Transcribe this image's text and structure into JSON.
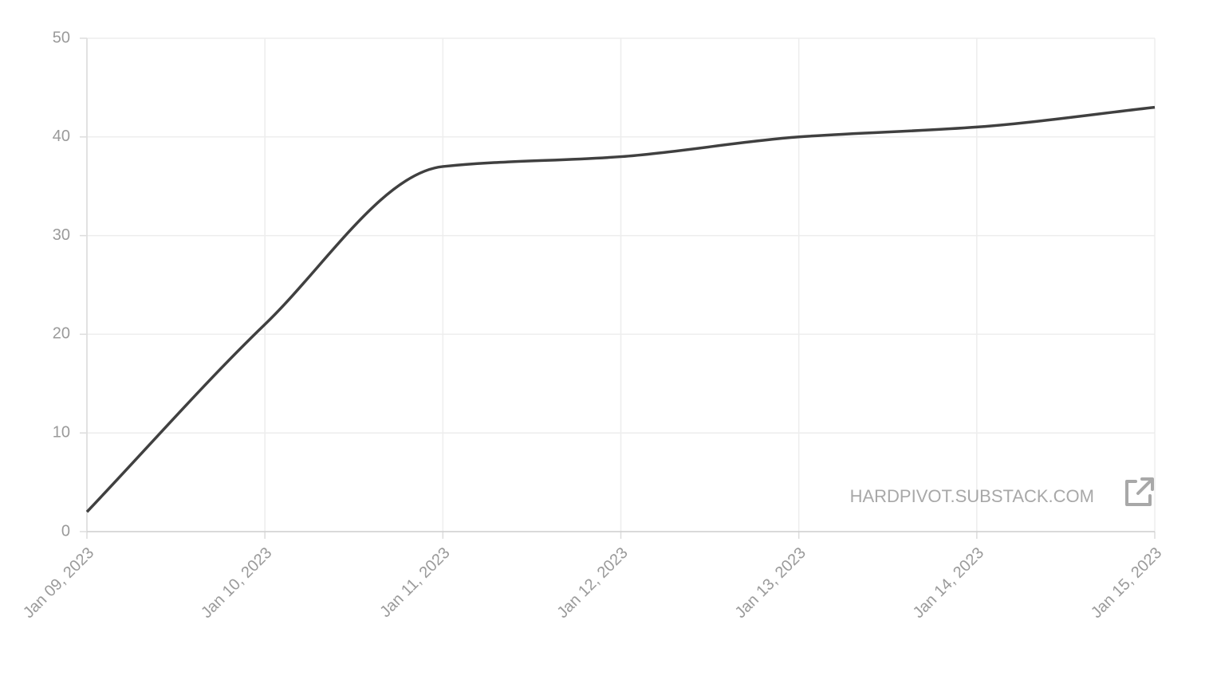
{
  "chart_data": {
    "type": "line",
    "categories": [
      "Jan 09, 2023",
      "Jan 10, 2023",
      "Jan 11, 2023",
      "Jan 12, 2023",
      "Jan 13, 2023",
      "Jan 14, 2023",
      "Jan 15, 2023"
    ],
    "values": [
      2,
      21,
      37,
      38,
      40,
      41,
      43
    ],
    "color": "#404040",
    "ylim": [
      0,
      50
    ],
    "yticks": [
      0,
      10,
      20,
      30,
      40,
      50
    ],
    "grid": true,
    "watermark": "HARDPIVOT.SUBSTACK.COM"
  }
}
